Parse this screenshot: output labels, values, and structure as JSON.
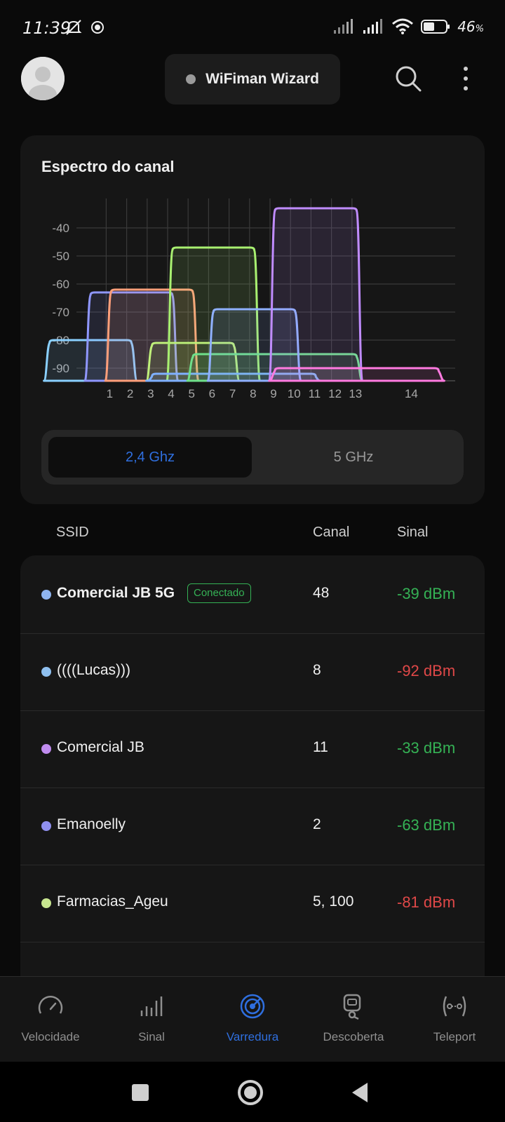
{
  "status_bar": {
    "time": "11:39",
    "battery": "46",
    "battery_unit": "%"
  },
  "header": {
    "wizard_label": "WiFiman Wizard",
    "icons": [
      "avatar",
      "search-icon",
      "more-vert-icon"
    ]
  },
  "spectrum": {
    "title": "Espectro do canal",
    "band_options": [
      "2,4 Ghz",
      "5 GHz"
    ],
    "selected_band": "2,4 Ghz"
  },
  "chart_data": {
    "type": "area",
    "title": "Espectro do canal",
    "x_ticks": [
      "1",
      "2",
      "3",
      "4",
      "5",
      "6",
      "7",
      "8",
      "9",
      "10",
      "11",
      "12",
      "13",
      "14"
    ],
    "y_ticks": [
      "-40",
      "-50",
      "-60",
      "-70",
      "-80",
      "-90"
    ],
    "ylim": [
      -95,
      -30
    ],
    "grid": true,
    "series": [
      {
        "color": "#8ad0ff",
        "center": 0,
        "width": 4,
        "level": -80
      },
      {
        "color": "#8f97ff",
        "center": 2,
        "width": 4,
        "level": -63
      },
      {
        "color": "#ff9f7a",
        "center": 3,
        "width": 4,
        "level": -62
      },
      {
        "color": "#c0f07a",
        "center": 5,
        "width": 4,
        "level": -81
      },
      {
        "color": "#a8f070",
        "center": 6,
        "width": 4,
        "level": -47
      },
      {
        "color": "#7fb0ff",
        "center": 7,
        "width": 8,
        "level": -92
      },
      {
        "color": "#6fe08a",
        "center": 9,
        "width": 8,
        "level": -85
      },
      {
        "color": "#8fb0ff",
        "center": 8,
        "width": 4,
        "level": -69
      },
      {
        "color": "#c08cff",
        "center": 11,
        "width": 4,
        "level": -33
      },
      {
        "color": "#ff7ae0",
        "center": 13,
        "width": 8,
        "level": -90
      }
    ]
  },
  "list": {
    "headers": {
      "ssid": "SSID",
      "canal": "Canal",
      "sinal": "Sinal"
    },
    "rows": [
      {
        "ssid": "Comercial JB 5G",
        "badge": "Conectado",
        "canal": "48",
        "sinal": "-39 dBm",
        "dot_color": "#8fb4ef",
        "sinal_color": "#35b255"
      },
      {
        "ssid": "((((Lucas)))",
        "badge": "",
        "canal": "8",
        "sinal": "-92 dBm",
        "dot_color": "#8fc0ef",
        "sinal_color": "#e04848"
      },
      {
        "ssid": "Comercial JB",
        "badge": "",
        "canal": "11",
        "sinal": "-33 dBm",
        "dot_color": "#c08cef",
        "sinal_color": "#35b255"
      },
      {
        "ssid": "Emanoelly",
        "badge": "",
        "canal": "2",
        "sinal": "-63 dBm",
        "dot_color": "#9090f0",
        "sinal_color": "#35b255"
      },
      {
        "ssid": "Farmacias_Ageu",
        "badge": "",
        "canal": "5, 100",
        "sinal": "-81 dBm",
        "dot_color": "#c8e690",
        "sinal_color": "#e04848"
      }
    ]
  },
  "bottom_nav": {
    "items": [
      {
        "label": "Velocidade",
        "icon": "speedometer-icon"
      },
      {
        "label": "Sinal",
        "icon": "signal-bars-icon"
      },
      {
        "label": "Varredura",
        "icon": "radar-scan-icon"
      },
      {
        "label": "Descoberta",
        "icon": "discovery-icon"
      },
      {
        "label": "Teleport",
        "icon": "teleport-icon"
      }
    ],
    "active": "Varredura"
  }
}
